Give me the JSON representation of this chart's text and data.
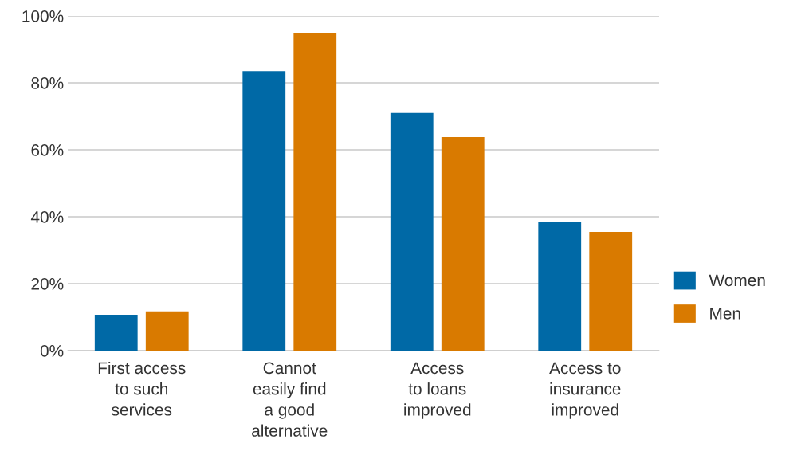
{
  "chart_data": {
    "type": "bar",
    "categories": [
      "First access\nto such\nservices",
      "Cannot\neasily find\na good\nalternative",
      "Access\nto loans\nimproved",
      "Access to\ninsurance\nimproved"
    ],
    "series": [
      {
        "name": "Women",
        "color": "#0069a6",
        "values": [
          10.7,
          83.5,
          71,
          38.6
        ]
      },
      {
        "name": "Men",
        "color": "#d97a00",
        "values": [
          11.7,
          95,
          63.8,
          35.5
        ]
      }
    ],
    "ylim": [
      0,
      100
    ],
    "yticks": [
      {
        "value": 0,
        "label": "0%"
      },
      {
        "value": 20,
        "label": "20%"
      },
      {
        "value": 40,
        "label": "40%"
      },
      {
        "value": 60,
        "label": "60%"
      },
      {
        "value": 80,
        "label": "80%"
      },
      {
        "value": 100,
        "label": "100%"
      }
    ],
    "grid": "y",
    "legend": "right"
  }
}
